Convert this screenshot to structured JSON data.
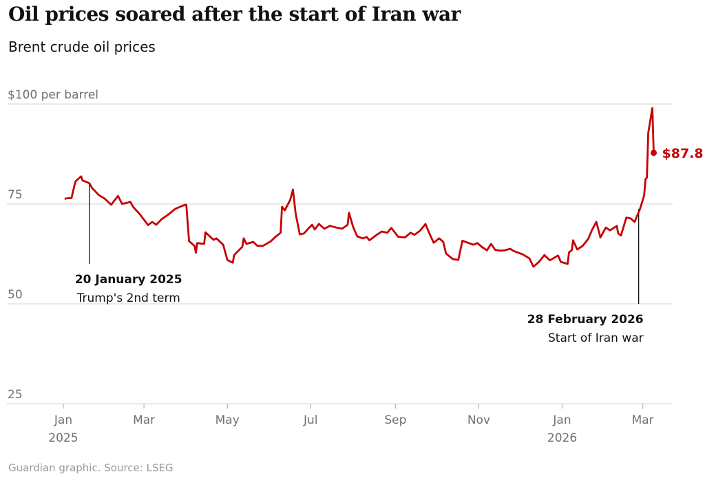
{
  "title": "Oil prices soared after the start of Iran war",
  "subtitle": "Brent crude oil prices",
  "footer": "Guardian graphic. Source: LSEG",
  "chart_data": {
    "type": "line",
    "ylabel": "$100 per barrel",
    "ylim": [
      25,
      100
    ],
    "yticks": [
      {
        "value": 100,
        "label": "$100 per barrel"
      },
      {
        "value": 75,
        "label": "75"
      },
      {
        "value": 50,
        "label": "50"
      },
      {
        "value": 25,
        "label": "25"
      }
    ],
    "xlim": [
      "2025-01-01",
      "2026-03-15"
    ],
    "xticks": [
      {
        "date": "2025-01-01",
        "label": "Jan",
        "year": "2025"
      },
      {
        "date": "2025-03-01",
        "label": "Mar",
        "year": ""
      },
      {
        "date": "2025-05-01",
        "label": "May",
        "year": ""
      },
      {
        "date": "2025-07-01",
        "label": "Jul",
        "year": ""
      },
      {
        "date": "2025-09-01",
        "label": "Sep",
        "year": ""
      },
      {
        "date": "2025-11-01",
        "label": "Nov",
        "year": ""
      },
      {
        "date": "2026-01-01",
        "label": "Jan",
        "year": "2026"
      },
      {
        "date": "2026-03-01",
        "label": "Mar",
        "year": ""
      }
    ],
    "grid": true,
    "color": "#c70000",
    "series": [
      {
        "points": [
          [
            "2025-01-02",
            76.2
          ],
          [
            "2025-01-03",
            76.4
          ],
          [
            "2025-01-07",
            76.5
          ],
          [
            "2025-01-09",
            79.5
          ],
          [
            "2025-01-10",
            80.7
          ],
          [
            "2025-01-14",
            81.9
          ],
          [
            "2025-01-15",
            80.9
          ],
          [
            "2025-01-20",
            80.2
          ],
          [
            "2025-01-22",
            79.0
          ],
          [
            "2025-01-27",
            77.2
          ],
          [
            "2025-01-31",
            76.4
          ],
          [
            "2025-02-05",
            74.8
          ],
          [
            "2025-02-10",
            77.0
          ],
          [
            "2025-02-13",
            75.0
          ],
          [
            "2025-02-19",
            75.5
          ],
          [
            "2025-02-21",
            74.3
          ],
          [
            "2025-02-26",
            72.4
          ],
          [
            "2025-03-04",
            69.7
          ],
          [
            "2025-03-07",
            70.5
          ],
          [
            "2025-03-10",
            69.8
          ],
          [
            "2025-03-14",
            71.2
          ],
          [
            "2025-03-19",
            72.4
          ],
          [
            "2025-03-24",
            73.8
          ],
          [
            "2025-03-31",
            74.8
          ],
          [
            "2025-04-01",
            74.8
          ],
          [
            "2025-04-03",
            65.7
          ],
          [
            "2025-04-07",
            64.5
          ],
          [
            "2025-04-08",
            62.8
          ],
          [
            "2025-04-09",
            65.2
          ],
          [
            "2025-04-14",
            65.0
          ],
          [
            "2025-04-15",
            67.9
          ],
          [
            "2025-04-21",
            66.0
          ],
          [
            "2025-04-23",
            66.4
          ],
          [
            "2025-04-28",
            64.8
          ],
          [
            "2025-05-01",
            61.0
          ],
          [
            "2025-05-05",
            60.3
          ],
          [
            "2025-05-06",
            62.2
          ],
          [
            "2025-05-12",
            64.3
          ],
          [
            "2025-05-13",
            66.4
          ],
          [
            "2025-05-15",
            65.0
          ],
          [
            "2025-05-20",
            65.5
          ],
          [
            "2025-05-23",
            64.5
          ],
          [
            "2025-05-27",
            64.5
          ],
          [
            "2025-06-02",
            65.7
          ],
          [
            "2025-06-05",
            66.7
          ],
          [
            "2025-06-09",
            67.8
          ],
          [
            "2025-06-10",
            74.3
          ],
          [
            "2025-06-12",
            73.4
          ],
          [
            "2025-06-16",
            76.0
          ],
          [
            "2025-06-18",
            78.6
          ],
          [
            "2025-06-20",
            72.6
          ],
          [
            "2025-06-23",
            67.4
          ],
          [
            "2025-06-26",
            67.6
          ],
          [
            "2025-06-30",
            69.1
          ],
          [
            "2025-07-02",
            69.8
          ],
          [
            "2025-07-04",
            68.6
          ],
          [
            "2025-07-07",
            70.0
          ],
          [
            "2025-07-11",
            68.8
          ],
          [
            "2025-07-15",
            69.5
          ],
          [
            "2025-07-21",
            69.0
          ],
          [
            "2025-07-24",
            68.8
          ],
          [
            "2025-07-28",
            69.8
          ],
          [
            "2025-07-29",
            72.8
          ],
          [
            "2025-08-01",
            69.3
          ],
          [
            "2025-08-04",
            66.9
          ],
          [
            "2025-08-08",
            66.4
          ],
          [
            "2025-08-11",
            66.7
          ],
          [
            "2025-08-13",
            65.9
          ],
          [
            "2025-08-18",
            67.2
          ],
          [
            "2025-08-22",
            68.1
          ],
          [
            "2025-08-26",
            67.8
          ],
          [
            "2025-08-29",
            69.0
          ],
          [
            "2025-09-03",
            66.8
          ],
          [
            "2025-09-08",
            66.6
          ],
          [
            "2025-09-12",
            67.8
          ],
          [
            "2025-09-15",
            67.3
          ],
          [
            "2025-09-19",
            68.3
          ],
          [
            "2025-09-23",
            70.0
          ],
          [
            "2025-09-25",
            68.3
          ],
          [
            "2025-09-29",
            65.3
          ],
          [
            "2025-10-03",
            66.4
          ],
          [
            "2025-10-06",
            65.5
          ],
          [
            "2025-10-08",
            62.6
          ],
          [
            "2025-10-13",
            61.2
          ],
          [
            "2025-10-17",
            61.0
          ],
          [
            "2025-10-20",
            65.8
          ],
          [
            "2025-10-24",
            65.3
          ],
          [
            "2025-10-28",
            64.8
          ],
          [
            "2025-10-31",
            65.2
          ],
          [
            "2025-11-03",
            64.3
          ],
          [
            "2025-11-07",
            63.4
          ],
          [
            "2025-11-10",
            65.0
          ],
          [
            "2025-11-13",
            63.5
          ],
          [
            "2025-11-17",
            63.3
          ],
          [
            "2025-11-20",
            63.4
          ],
          [
            "2025-11-24",
            63.8
          ],
          [
            "2025-11-26",
            63.3
          ],
          [
            "2025-12-03",
            62.4
          ],
          [
            "2025-12-08",
            61.4
          ],
          [
            "2025-12-11",
            59.3
          ],
          [
            "2025-12-15",
            60.5
          ],
          [
            "2025-12-19",
            62.2
          ],
          [
            "2025-12-23",
            60.9
          ],
          [
            "2025-12-29",
            62.1
          ],
          [
            "2025-12-31",
            60.5
          ],
          [
            "2026-01-05",
            60.0
          ],
          [
            "2026-01-06",
            62.9
          ],
          [
            "2026-01-08",
            63.4
          ],
          [
            "2026-01-09",
            65.9
          ],
          [
            "2026-01-12",
            63.6
          ],
          [
            "2026-01-16",
            64.5
          ],
          [
            "2026-01-20",
            66.2
          ],
          [
            "2026-01-23",
            68.6
          ],
          [
            "2026-01-26",
            70.5
          ],
          [
            "2026-01-29",
            66.6
          ],
          [
            "2026-02-02",
            69.1
          ],
          [
            "2026-02-05",
            68.4
          ],
          [
            "2026-02-10",
            69.5
          ],
          [
            "2026-02-11",
            67.6
          ],
          [
            "2026-02-13",
            67.1
          ],
          [
            "2026-02-17",
            71.6
          ],
          [
            "2026-02-20",
            71.4
          ],
          [
            "2026-02-23",
            70.5
          ],
          [
            "2026-02-27",
            73.8
          ],
          [
            "2026-03-02",
            77.1
          ],
          [
            "2026-03-03",
            81.2
          ],
          [
            "2026-03-04",
            81.6
          ],
          [
            "2026-03-05",
            92.8
          ],
          [
            "2026-03-08",
            99.0
          ],
          [
            "2026-03-09",
            87.8
          ]
        ]
      }
    ],
    "last_value_label": "$87.8",
    "annotations": [
      {
        "date": "2025-01-20",
        "title": "20 January 2025",
        "text": "Trump's 2nd term"
      },
      {
        "date": "2026-02-28",
        "title": "28 February 2026",
        "text": "Start of Iran war"
      }
    ]
  }
}
